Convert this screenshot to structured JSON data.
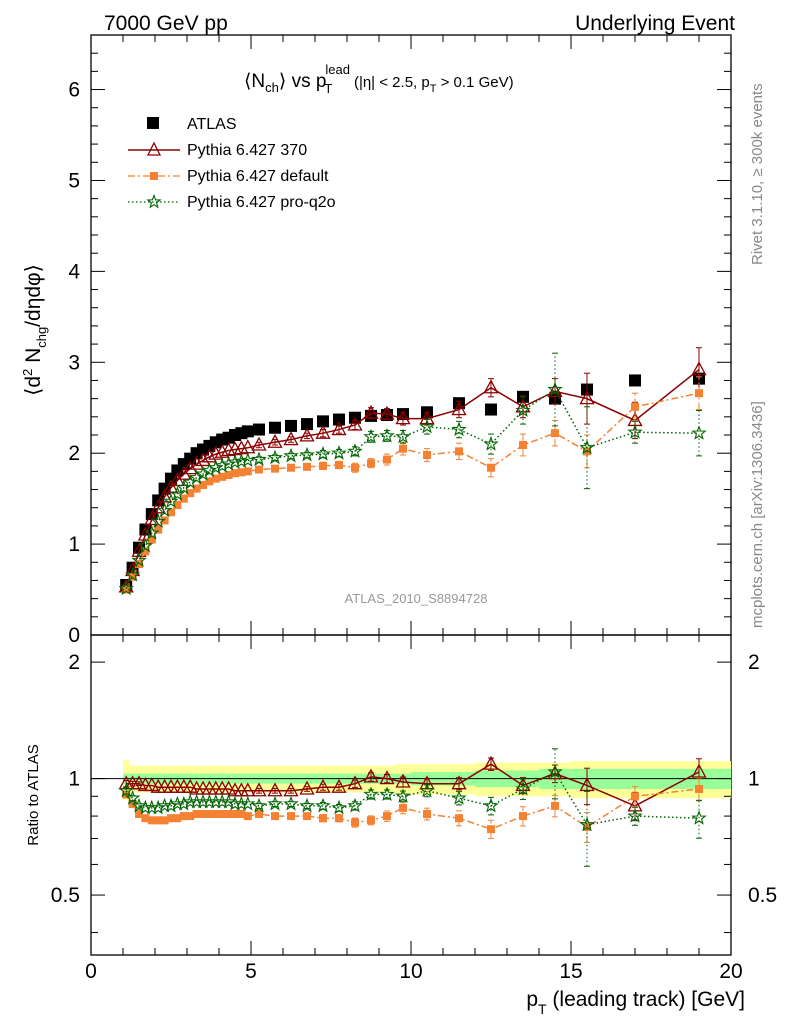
{
  "header": {
    "left": "7000 GeV pp",
    "right": "Underlying Event"
  },
  "side_text": {
    "top": "Rivet 3.1.10, ≥ 300k events",
    "bottom": "mcplots.cern.ch [arXiv:1306.3436]"
  },
  "chart_data": {
    "type": "scatter",
    "title_main": "⟨N",
    "title_main_sub": "ch",
    "title_mid": "⟩ vs p",
    "title_p_sub": "T",
    "title_p_sup": "lead",
    "title_cut_a": "(|η| < 2.5, p",
    "title_cut_sub": "T",
    "title_cut_b": " > 0.1 GeV)",
    "ylabel_top": {
      "prefix": "⟨d",
      "sup": "2",
      "mid": " N",
      "sub": "chg",
      "suffix": "/dηdφ⟩"
    },
    "ylabel_bottom": "Ratio to ATLAS",
    "xlabel": {
      "prefix": "p",
      "sub": "T",
      "suffix": " (leading track) [GeV]"
    },
    "analysis_label": "ATLAS_2010_S8894728",
    "xlim": [
      0,
      20
    ],
    "ylim_top": [
      0,
      6.6
    ],
    "ylim_bottom": [
      0.35,
      2.35
    ],
    "x_ticks": [
      0,
      5,
      10,
      15,
      20
    ],
    "y_ticks_top": [
      0,
      1,
      2,
      3,
      4,
      5,
      6
    ],
    "y_ticks_bottom_major": [
      0.5,
      1,
      2
    ],
    "y_tick_labels_bottom": [
      "0.5",
      "1",
      "2"
    ],
    "x": [
      1.1,
      1.3,
      1.5,
      1.7,
      1.9,
      2.1,
      2.3,
      2.5,
      2.7,
      2.9,
      3.1,
      3.3,
      3.5,
      3.7,
      3.9,
      4.1,
      4.3,
      4.5,
      4.7,
      4.9,
      5.25,
      5.75,
      6.25,
      6.75,
      7.25,
      7.75,
      8.25,
      8.75,
      9.25,
      9.75,
      10.5,
      11.5,
      12.5,
      13.5,
      14.5,
      15.5,
      17.0,
      19.0
    ],
    "series": [
      {
        "name": "ATLAS",
        "color": "#000000",
        "marker": "square",
        "values": [
          0.55,
          0.74,
          0.96,
          1.16,
          1.33,
          1.48,
          1.61,
          1.72,
          1.81,
          1.88,
          1.94,
          2.0,
          2.04,
          2.08,
          2.12,
          2.15,
          2.17,
          2.2,
          2.22,
          2.24,
          2.26,
          2.28,
          2.3,
          2.32,
          2.35,
          2.37,
          2.39,
          2.41,
          2.42,
          2.43,
          2.45,
          2.55,
          2.48,
          2.62,
          2.6,
          2.7,
          2.8,
          2.82
        ],
        "errors": [
          0.01,
          0.01,
          0.01,
          0.01,
          0.01,
          0.01,
          0.01,
          0.01,
          0.01,
          0.01,
          0.01,
          0.01,
          0.01,
          0.01,
          0.01,
          0.01,
          0.01,
          0.01,
          0.01,
          0.01,
          0.01,
          0.01,
          0.01,
          0.01,
          0.01,
          0.01,
          0.01,
          0.01,
          0.01,
          0.01,
          0.02,
          0.02,
          0.03,
          0.04,
          0.05,
          0.06,
          0.05,
          0.06
        ]
      },
      {
        "name": "Pythia 6.427 370",
        "color": "#8b0000",
        "marker": "open-triangle",
        "line": "solid",
        "values": [
          0.53,
          0.71,
          0.92,
          1.1,
          1.27,
          1.4,
          1.52,
          1.62,
          1.7,
          1.77,
          1.83,
          1.88,
          1.92,
          1.96,
          1.99,
          2.01,
          2.03,
          2.04,
          2.05,
          2.06,
          2.09,
          2.12,
          2.15,
          2.19,
          2.22,
          2.26,
          2.31,
          2.44,
          2.43,
          2.38,
          2.38,
          2.48,
          2.72,
          2.51,
          2.68,
          2.6,
          2.36,
          2.92
        ],
        "errors": [
          0.01,
          0.01,
          0.01,
          0.01,
          0.01,
          0.01,
          0.01,
          0.01,
          0.01,
          0.01,
          0.01,
          0.01,
          0.01,
          0.02,
          0.02,
          0.02,
          0.02,
          0.02,
          0.02,
          0.02,
          0.03,
          0.03,
          0.03,
          0.03,
          0.04,
          0.04,
          0.05,
          0.06,
          0.06,
          0.07,
          0.07,
          0.09,
          0.1,
          0.12,
          0.14,
          0.28,
          0.2,
          0.24
        ]
      },
      {
        "name": "Pythia 6.427 default",
        "color": "#f58133",
        "marker": "filled-square-small",
        "line": "dashdot",
        "values": [
          0.5,
          0.64,
          0.78,
          0.92,
          1.05,
          1.16,
          1.26,
          1.35,
          1.43,
          1.5,
          1.56,
          1.61,
          1.65,
          1.69,
          1.72,
          1.74,
          1.76,
          1.78,
          1.79,
          1.8,
          1.82,
          1.83,
          1.84,
          1.85,
          1.86,
          1.87,
          1.84,
          1.89,
          1.93,
          2.05,
          1.98,
          2.02,
          1.84,
          2.09,
          2.22,
          2.02,
          2.51,
          2.66
        ],
        "errors": [
          0.01,
          0.01,
          0.01,
          0.01,
          0.01,
          0.01,
          0.01,
          0.01,
          0.01,
          0.01,
          0.01,
          0.01,
          0.01,
          0.02,
          0.02,
          0.02,
          0.02,
          0.02,
          0.02,
          0.02,
          0.03,
          0.03,
          0.03,
          0.03,
          0.04,
          0.04,
          0.05,
          0.05,
          0.06,
          0.07,
          0.07,
          0.09,
          0.1,
          0.12,
          0.14,
          0.18,
          0.15,
          0.18
        ]
      },
      {
        "name": "Pythia 6.427 pro-q2o",
        "color": "#006400",
        "marker": "open-star",
        "line": "dotted",
        "values": [
          0.51,
          0.66,
          0.82,
          0.98,
          1.12,
          1.25,
          1.37,
          1.47,
          1.55,
          1.62,
          1.68,
          1.73,
          1.77,
          1.81,
          1.84,
          1.86,
          1.88,
          1.9,
          1.91,
          1.92,
          1.93,
          1.95,
          1.97,
          1.98,
          1.99,
          2.0,
          2.02,
          2.18,
          2.19,
          2.18,
          2.29,
          2.26,
          2.1,
          2.47,
          2.7,
          2.06,
          2.23,
          2.22
        ],
        "errors": [
          0.01,
          0.01,
          0.01,
          0.01,
          0.01,
          0.01,
          0.01,
          0.01,
          0.01,
          0.01,
          0.01,
          0.01,
          0.01,
          0.02,
          0.02,
          0.02,
          0.02,
          0.02,
          0.02,
          0.02,
          0.03,
          0.03,
          0.03,
          0.03,
          0.04,
          0.04,
          0.05,
          0.06,
          0.06,
          0.07,
          0.08,
          0.09,
          0.11,
          0.15,
          0.4,
          0.45,
          0.12,
          0.25
        ]
      }
    ],
    "ratio_values": {
      "Pythia 6.427 370": [
        0.97,
        0.97,
        0.97,
        0.96,
        0.96,
        0.95,
        0.95,
        0.95,
        0.95,
        0.95,
        0.95,
        0.94,
        0.94,
        0.94,
        0.94,
        0.94,
        0.94,
        0.93,
        0.93,
        0.93,
        0.93,
        0.93,
        0.93,
        0.94,
        0.95,
        0.95,
        0.97,
        1.01,
        1.0,
        0.98,
        0.97,
        0.97,
        1.09,
        0.96,
        1.03,
        0.96,
        0.85,
        1.04
      ],
      "Pythia 6.427 default": [
        0.91,
        0.86,
        0.81,
        0.79,
        0.78,
        0.78,
        0.78,
        0.79,
        0.79,
        0.8,
        0.8,
        0.81,
        0.81,
        0.81,
        0.81,
        0.81,
        0.81,
        0.81,
        0.81,
        0.8,
        0.81,
        0.8,
        0.8,
        0.8,
        0.79,
        0.79,
        0.77,
        0.78,
        0.8,
        0.84,
        0.81,
        0.79,
        0.74,
        0.8,
        0.85,
        0.75,
        0.9,
        0.94
      ],
      "Pythia 6.427 pro-q2o": [
        0.93,
        0.89,
        0.85,
        0.84,
        0.84,
        0.84,
        0.85,
        0.85,
        0.86,
        0.86,
        0.87,
        0.87,
        0.87,
        0.87,
        0.87,
        0.87,
        0.87,
        0.86,
        0.86,
        0.86,
        0.85,
        0.86,
        0.86,
        0.85,
        0.85,
        0.84,
        0.85,
        0.91,
        0.91,
        0.9,
        0.93,
        0.89,
        0.85,
        0.94,
        1.04,
        0.76,
        0.8,
        0.79
      ]
    },
    "band_x_edges": [
      1.0,
      1.2,
      1.4,
      1.6,
      1.8,
      2.0,
      2.2,
      2.4,
      2.6,
      2.8,
      3.0,
      3.2,
      3.4,
      3.6,
      3.8,
      4.0,
      4.2,
      4.4,
      4.6,
      4.8,
      5.0,
      5.5,
      6.0,
      6.5,
      7.0,
      7.5,
      8.0,
      8.5,
      9.0,
      9.5,
      10.0,
      11.0,
      12.0,
      13.0,
      14.0,
      15.0,
      16.0,
      18.0,
      20.0
    ],
    "band_stat_half": [
      0.03,
      0.03,
      0.03,
      0.03,
      0.03,
      0.03,
      0.03,
      0.03,
      0.03,
      0.03,
      0.03,
      0.03,
      0.03,
      0.03,
      0.03,
      0.03,
      0.03,
      0.03,
      0.03,
      0.03,
      0.03,
      0.03,
      0.03,
      0.03,
      0.03,
      0.03,
      0.03,
      0.03,
      0.03,
      0.03,
      0.04,
      0.04,
      0.05,
      0.05,
      0.06,
      0.06,
      0.06,
      0.06
    ],
    "band_tot_half": [
      0.12,
      0.08,
      0.08,
      0.08,
      0.08,
      0.08,
      0.08,
      0.08,
      0.08,
      0.08,
      0.08,
      0.08,
      0.08,
      0.08,
      0.08,
      0.08,
      0.08,
      0.08,
      0.08,
      0.08,
      0.08,
      0.08,
      0.08,
      0.08,
      0.08,
      0.08,
      0.08,
      0.08,
      0.08,
      0.09,
      0.09,
      0.09,
      0.1,
      0.1,
      0.1,
      0.11,
      0.11,
      0.11
    ],
    "band_colors": {
      "stat": "#99ff99",
      "total": "#ffff99"
    },
    "grid": false,
    "legend_position": "top-left"
  }
}
